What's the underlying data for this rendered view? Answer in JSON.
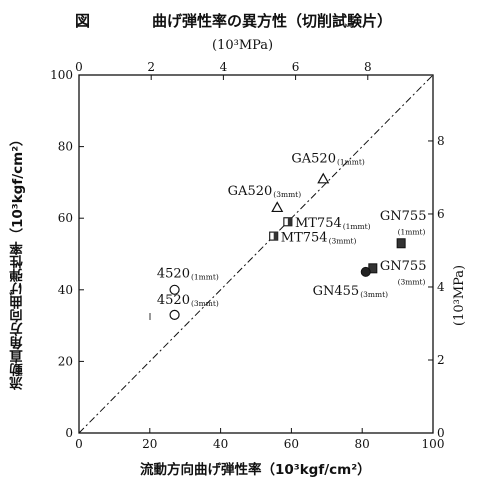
{
  "header": {
    "fig_label": "図",
    "title": "曲げ弾性率の異方性（切削試験片）",
    "top_unit": "(10³MPa)",
    "x_label": "流動方向曲げ弾性率（10³kgf/cm²）",
    "y_label_left": "流動直角方向曲げ弾性率（10³kgf/cm²）",
    "y_label_right": "(10³MPa)"
  },
  "chart_data": {
    "type": "scatter",
    "xlim": [
      0,
      100
    ],
    "ylim": [
      0,
      100
    ],
    "x_ticks": [
      0,
      20,
      40,
      60,
      80,
      100
    ],
    "y_ticks": [
      0,
      20,
      40,
      60,
      80,
      100
    ],
    "top_ticks": [
      0,
      2,
      4,
      6,
      8
    ],
    "right_ticks": [
      0,
      2,
      4,
      6,
      8
    ],
    "secondary_scale_factor": 0.0980665,
    "grid": false,
    "reference_line": "y = x (dashed)",
    "points": [
      {
        "label": "4520",
        "sub": "(1mmt)",
        "marker": "circle",
        "x": 27,
        "y": 40,
        "label_x": 22,
        "label_y": 43.5
      },
      {
        "label": "4520",
        "sub": "(3mmt)",
        "marker": "circle",
        "x": 27,
        "y": 33,
        "label_x": 22,
        "label_y": 36
      },
      {
        "label": "GA520",
        "sub": "(1mmt)",
        "marker": "triangle",
        "x": 69,
        "y": 71,
        "label_x": 60,
        "label_y": 75.5
      },
      {
        "label": "GA520",
        "sub": "(3mmt)",
        "marker": "triangle",
        "x": 56,
        "y": 63,
        "label_x": 42,
        "label_y": 66.5
      },
      {
        "label": "MT754",
        "sub": "(1mmt)",
        "marker": "half-square",
        "x": 59,
        "y": 59,
        "label_x": 61,
        "label_y": 57.5
      },
      {
        "label": "MT754",
        "sub": "(3mmt)",
        "marker": "half-square",
        "x": 55,
        "y": 55,
        "label_x": 57,
        "label_y": 53.5
      },
      {
        "label": "GN755",
        "sub": "(1mmt)",
        "marker": "filled-square",
        "x": 91,
        "y": 53,
        "label_x": 85,
        "label_y": 59.5,
        "sub_x": 90,
        "sub_y": 55.5
      },
      {
        "label": "GN755",
        "sub": "(3mmt)",
        "marker": "filled-square",
        "x": 83,
        "y": 46,
        "label_x": 85,
        "label_y": 45.5,
        "sub_x": 90,
        "sub_y": 41.5
      },
      {
        "label": "GN455",
        "sub": "(3mmt)",
        "marker": "filled-circle",
        "x": 81,
        "y": 45,
        "label_x": 66,
        "label_y": 38.5
      }
    ]
  }
}
